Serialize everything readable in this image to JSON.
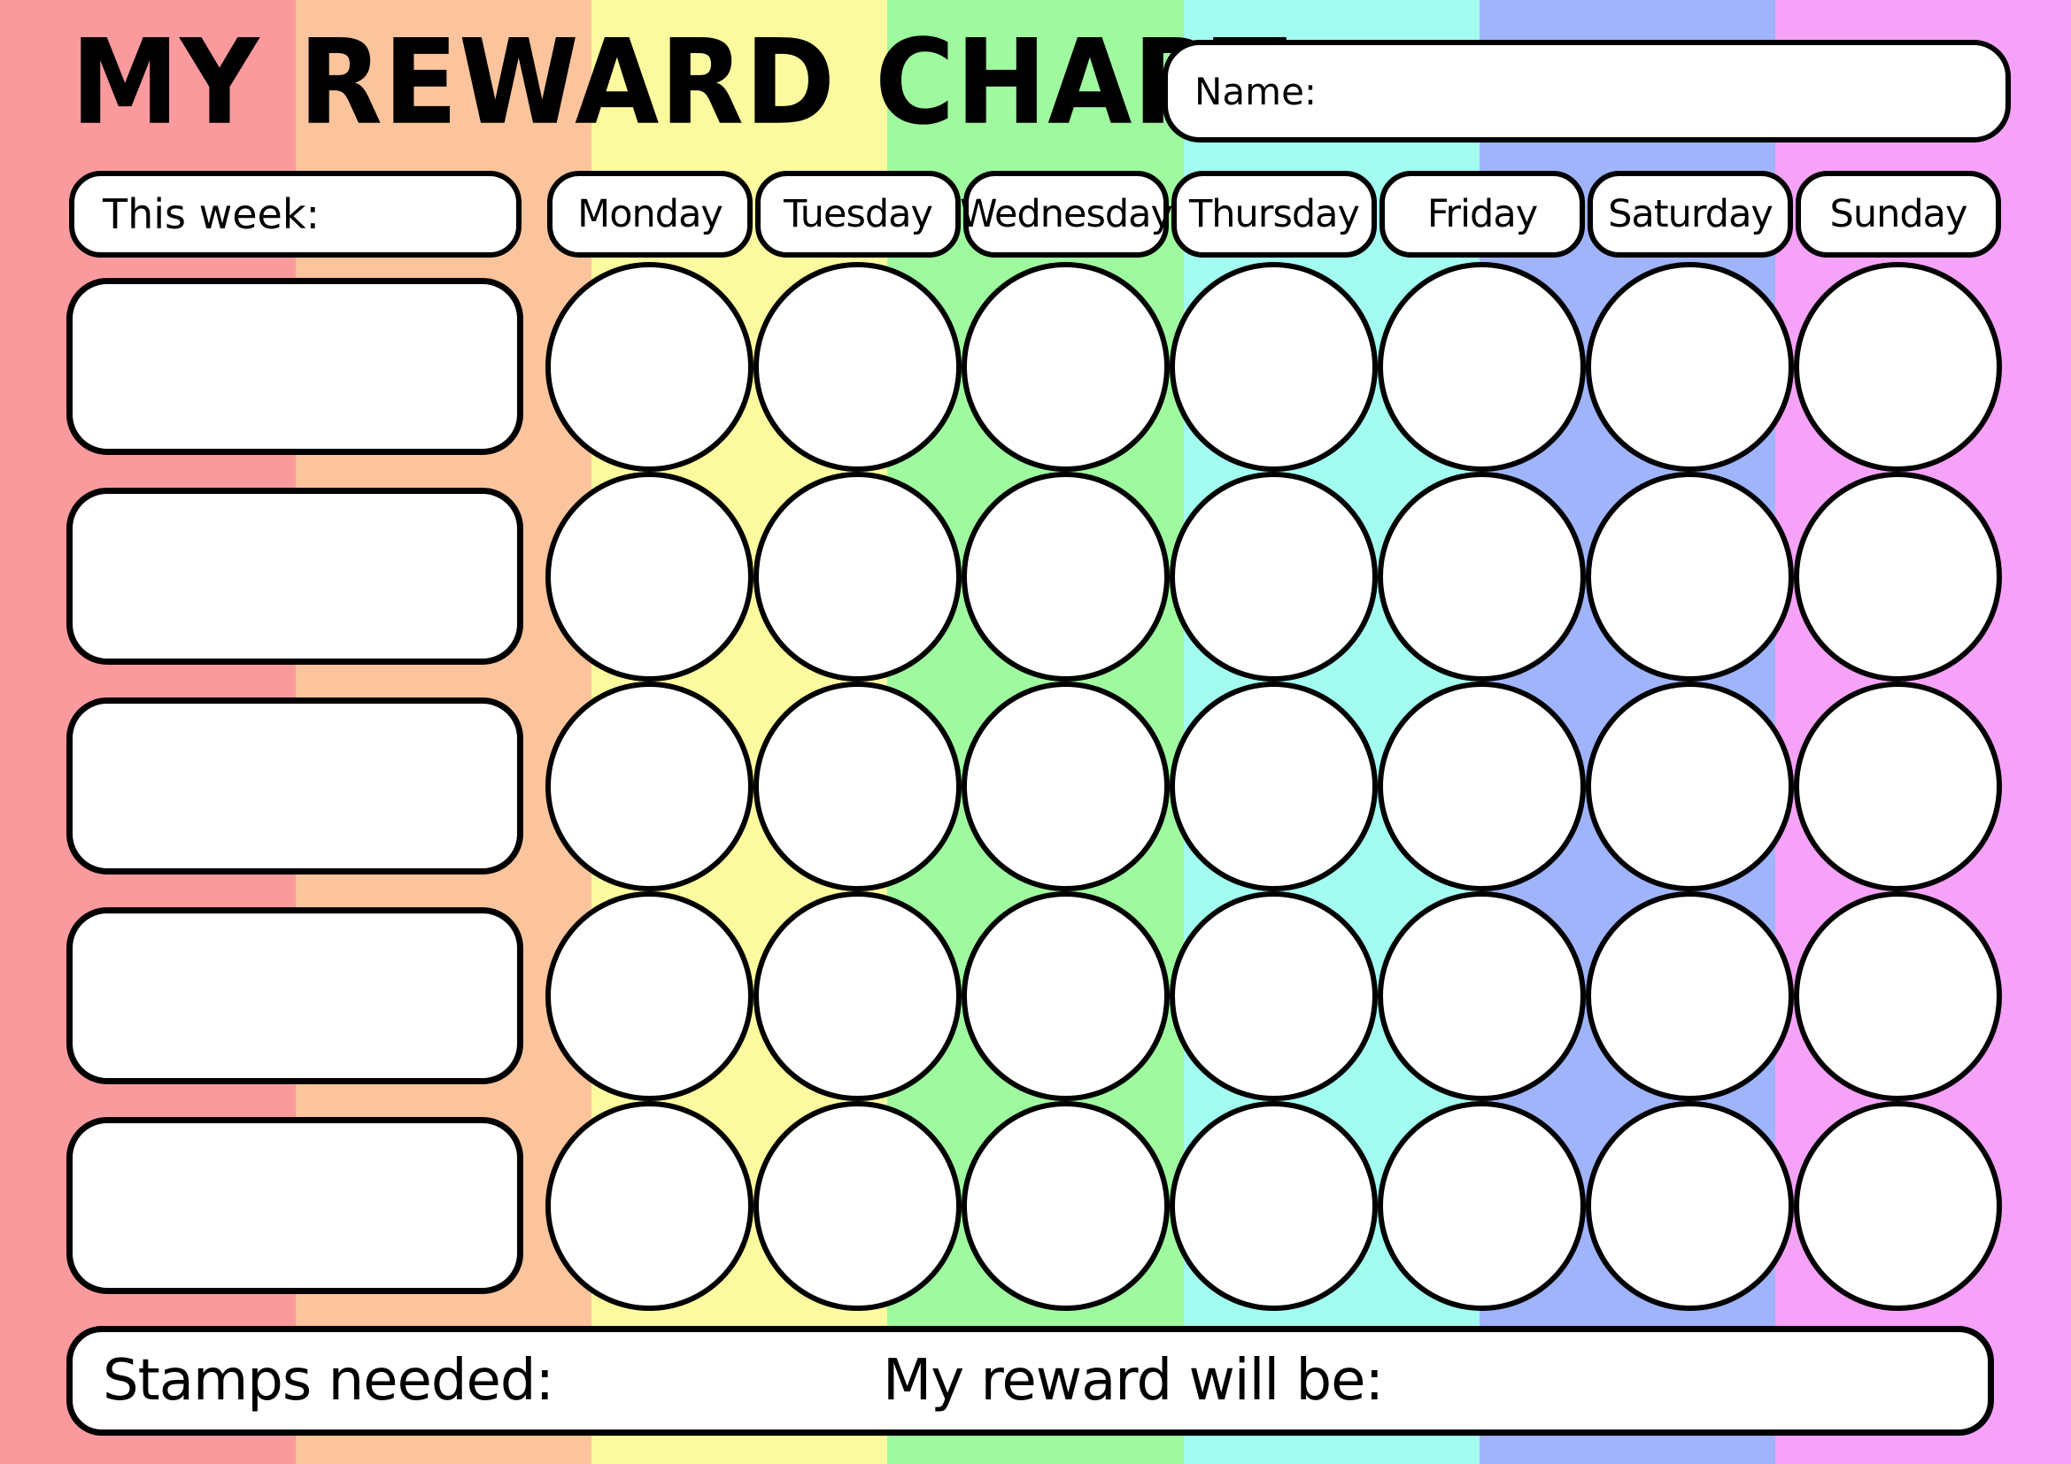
{
  "title": "MY REWARD CHART",
  "name_label": "Name:",
  "week_label": "This week:",
  "days": [
    "Monday",
    "Tuesday",
    "Wednesday",
    "Thursday",
    "Friday",
    "Saturday",
    "Sunday"
  ],
  "grid": {
    "rows": 5,
    "cols": 7
  },
  "task_rows": 5,
  "footer": {
    "stamps_label": "Stamps needed:",
    "reward_label": "My reward will be:"
  },
  "colors": {
    "stripes": [
      "#FB9A9D",
      "#FCC49C",
      "#FCFA9E",
      "#9FFA9F",
      "#A3FCF0",
      "#A0B4FC",
      "#F5A2F8"
    ],
    "outline": "#000000",
    "field_bg": "#FFFFFF"
  }
}
